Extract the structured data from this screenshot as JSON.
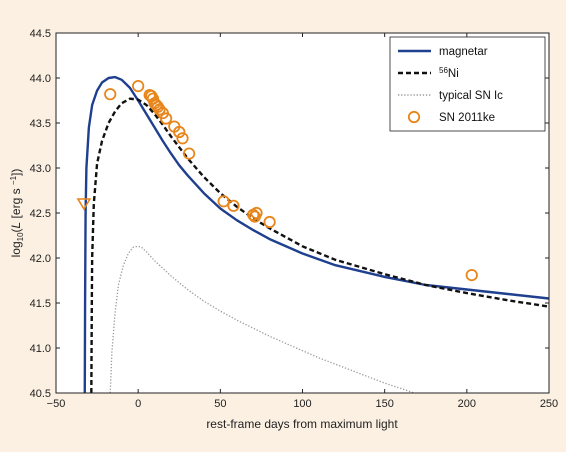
{
  "chart_data": {
    "type": "line",
    "xlabel": "rest-frame days from maximum light",
    "ylabel_prefix": "log",
    "ylabel_sub": "10",
    "ylabel_var": "L",
    "ylabel_units": "[erg s",
    "ylabel_units_exp": "−1",
    "ylabel_units_end": "])",
    "xlim": [
      -50,
      250
    ],
    "ylim": [
      40.5,
      44.5
    ],
    "xticks": [
      "−50",
      "0",
      "50",
      "100",
      "150",
      "200",
      "250"
    ],
    "yticks": [
      "40.5",
      "41.0",
      "41.5",
      "42.0",
      "42.5",
      "43.0",
      "43.5",
      "44.0",
      "44.5"
    ],
    "legend_position": "top-right",
    "legend": [
      {
        "label": "magnetar",
        "style": "solid",
        "color": "#1f3f8f"
      },
      {
        "label_sup": "56",
        "label": "Ni",
        "style": "dashed",
        "color": "#111111"
      },
      {
        "label": "typical SN Ic",
        "style": "dotted",
        "color": "#9a9a9a"
      },
      {
        "label": "SN 2011ke",
        "style": "marker-circle",
        "color": "#e8861c"
      }
    ],
    "series": [
      {
        "name": "magnetar",
        "color": "#1f3f8f",
        "x": [
          -32.5,
          -32.3,
          -32.0,
          -31.5,
          -30,
          -28,
          -25,
          -22,
          -18,
          -14,
          -10,
          -5,
          0,
          5,
          10,
          15,
          20,
          25,
          30,
          40,
          50,
          60,
          70,
          80,
          100,
          120,
          150,
          175,
          200,
          225,
          250
        ],
        "y": [
          40.5,
          41.5,
          42.5,
          43.0,
          43.45,
          43.7,
          43.86,
          43.95,
          44.0,
          44.01,
          43.98,
          43.89,
          43.75,
          43.6,
          43.45,
          43.3,
          43.16,
          43.03,
          42.92,
          42.72,
          42.55,
          42.42,
          42.31,
          42.21,
          42.05,
          41.92,
          41.79,
          41.7,
          41.65,
          41.6,
          41.55
        ]
      },
      {
        "name": "56Ni",
        "color": "#111111",
        "x": [
          -28.5,
          -28.2,
          -28,
          -27,
          -25,
          -22,
          -18,
          -14,
          -10,
          -5,
          0,
          5,
          10,
          15,
          20,
          25,
          30,
          40,
          50,
          60,
          70,
          80,
          100,
          120,
          150,
          175,
          200,
          225,
          250
        ],
        "y": [
          40.5,
          41.5,
          42.0,
          42.6,
          43.05,
          43.3,
          43.5,
          43.63,
          43.72,
          43.77,
          43.76,
          43.7,
          43.6,
          43.48,
          43.35,
          43.23,
          43.11,
          42.9,
          42.72,
          42.57,
          42.44,
          42.33,
          42.13,
          41.98,
          41.82,
          41.7,
          41.61,
          41.53,
          41.46
        ]
      },
      {
        "name": "typical SN Ic",
        "color": "#9a9a9a",
        "x": [
          -17,
          -16,
          -14,
          -12,
          -9,
          -6,
          -3,
          0,
          2,
          5,
          10,
          20,
          30,
          40,
          50,
          60,
          70,
          80,
          90,
          100,
          110,
          120,
          130,
          140,
          150,
          160,
          168
        ],
        "y": [
          40.5,
          40.95,
          41.4,
          41.7,
          41.92,
          42.05,
          42.12,
          42.13,
          42.12,
          42.07,
          41.97,
          41.8,
          41.65,
          41.52,
          41.41,
          41.31,
          41.22,
          41.13,
          41.05,
          40.97,
          40.89,
          40.82,
          40.75,
          40.68,
          40.61,
          40.55,
          40.5
        ]
      }
    ],
    "observations": {
      "name": "SN 2011ke",
      "color": "#e8861c",
      "points": [
        [
          -17,
          43.82
        ],
        [
          0,
          43.91
        ],
        [
          7,
          43.81
        ],
        [
          8,
          43.8
        ],
        [
          9,
          43.77
        ],
        [
          10,
          43.72
        ],
        [
          11,
          43.7
        ],
        [
          12,
          43.68
        ],
        [
          13,
          43.65
        ],
        [
          15,
          43.61
        ],
        [
          17,
          43.55
        ],
        [
          22,
          43.46
        ],
        [
          25,
          43.4
        ],
        [
          27,
          43.33
        ],
        [
          31,
          43.16
        ],
        [
          52,
          42.63
        ],
        [
          58,
          42.58
        ],
        [
          70,
          42.48
        ],
        [
          71,
          42.46
        ],
        [
          72,
          42.5
        ],
        [
          80,
          42.4
        ],
        [
          203,
          41.81
        ]
      ],
      "upper_limit": [
        -33,
        42.6
      ]
    }
  }
}
